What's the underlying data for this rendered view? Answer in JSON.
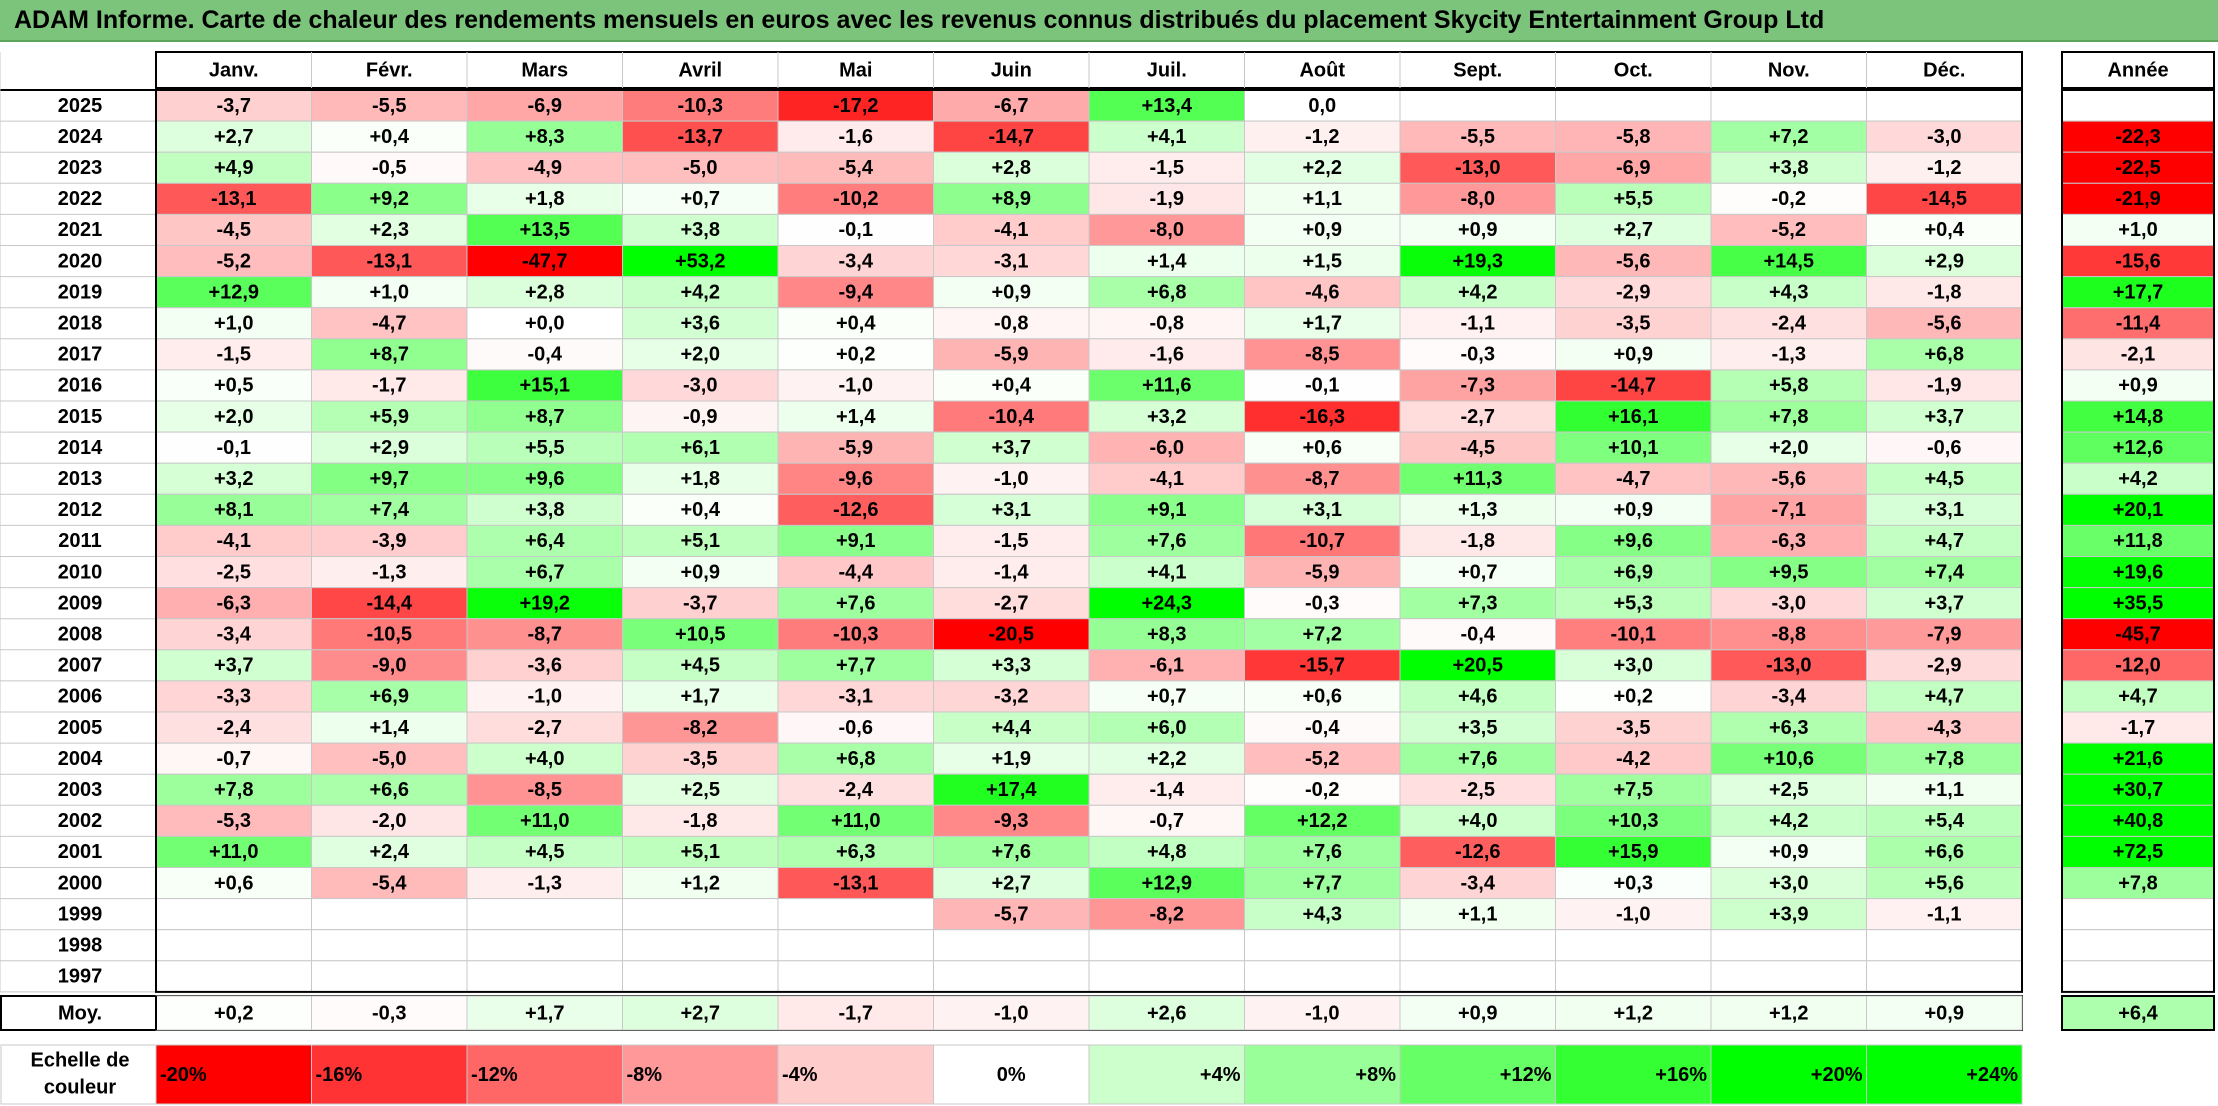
{
  "title": "ADAM Informe. Carte de chaleur des rendements mensuels en euros avec les revenus connus distribués du placement Skycity Entertainment Group Ltd",
  "chart_data": {
    "type": "heatmap",
    "months": [
      "Janv.",
      "Févr.",
      "Mars",
      "Avril",
      "Mai",
      "Juin",
      "Juil.",
      "Août",
      "Sept.",
      "Oct.",
      "Nov.",
      "Déc."
    ],
    "annual_header": "Année",
    "rows": [
      {
        "year": "2025",
        "values": [
          "-3,7",
          "-5,5",
          "-6,9",
          "-10,3",
          "-17,2",
          "-6,7",
          "+13,4",
          "0,0",
          "",
          "",
          "",
          ""
        ],
        "annual": ""
      },
      {
        "year": "2024",
        "values": [
          "+2,7",
          "+0,4",
          "+8,3",
          "-13,7",
          "-1,6",
          "-14,7",
          "+4,1",
          "-1,2",
          "-5,5",
          "-5,8",
          "+7,2",
          "-3,0"
        ],
        "annual": "-22,3"
      },
      {
        "year": "2023",
        "values": [
          "+4,9",
          "-0,5",
          "-4,9",
          "-5,0",
          "-5,4",
          "+2,8",
          "-1,5",
          "+2,2",
          "-13,0",
          "-6,9",
          "+3,8",
          "-1,2"
        ],
        "annual": "-22,5"
      },
      {
        "year": "2022",
        "values": [
          "-13,1",
          "+9,2",
          "+1,8",
          "+0,7",
          "-10,2",
          "+8,9",
          "-1,9",
          "+1,1",
          "-8,0",
          "+5,5",
          "-0,2",
          "-14,5"
        ],
        "annual": "-21,9"
      },
      {
        "year": "2021",
        "values": [
          "-4,5",
          "+2,3",
          "+13,5",
          "+3,8",
          "-0,1",
          "-4,1",
          "-8,0",
          "+0,9",
          "+0,9",
          "+2,7",
          "-5,2",
          "+0,4"
        ],
        "annual": "+1,0"
      },
      {
        "year": "2020",
        "values": [
          "-5,2",
          "-13,1",
          "-47,7",
          "+53,2",
          "-3,4",
          "-3,1",
          "+1,4",
          "+1,5",
          "+19,3",
          "-5,6",
          "+14,5",
          "+2,9"
        ],
        "annual": "-15,6"
      },
      {
        "year": "2019",
        "values": [
          "+12,9",
          "+1,0",
          "+2,8",
          "+4,2",
          "-9,4",
          "+0,9",
          "+6,8",
          "-4,6",
          "+4,2",
          "-2,9",
          "+4,3",
          "-1,8"
        ],
        "annual": "+17,7"
      },
      {
        "year": "2018",
        "values": [
          "+1,0",
          "-4,7",
          "+0,0",
          "+3,6",
          "+0,4",
          "-0,8",
          "-0,8",
          "+1,7",
          "-1,1",
          "-3,5",
          "-2,4",
          "-5,6"
        ],
        "annual": "-11,4"
      },
      {
        "year": "2017",
        "values": [
          "-1,5",
          "+8,7",
          "-0,4",
          "+2,0",
          "+0,2",
          "-5,9",
          "-1,6",
          "-8,5",
          "-0,3",
          "+0,9",
          "-1,3",
          "+6,8"
        ],
        "annual": "-2,1"
      },
      {
        "year": "2016",
        "values": [
          "+0,5",
          "-1,7",
          "+15,1",
          "-3,0",
          "-1,0",
          "+0,4",
          "+11,6",
          "-0,1",
          "-7,3",
          "-14,7",
          "+5,8",
          "-1,9"
        ],
        "annual": "+0,9"
      },
      {
        "year": "2015",
        "values": [
          "+2,0",
          "+5,9",
          "+8,7",
          "-0,9",
          "+1,4",
          "-10,4",
          "+3,2",
          "-16,3",
          "-2,7",
          "+16,1",
          "+7,8",
          "+3,7"
        ],
        "annual": "+14,8"
      },
      {
        "year": "2014",
        "values": [
          "-0,1",
          "+2,9",
          "+5,5",
          "+6,1",
          "-5,9",
          "+3,7",
          "-6,0",
          "+0,6",
          "-4,5",
          "+10,1",
          "+2,0",
          "-0,6"
        ],
        "annual": "+12,6"
      },
      {
        "year": "2013",
        "values": [
          "+3,2",
          "+9,7",
          "+9,6",
          "+1,8",
          "-9,6",
          "-1,0",
          "-4,1",
          "-8,7",
          "+11,3",
          "-4,7",
          "-5,6",
          "+4,5"
        ],
        "annual": "+4,2"
      },
      {
        "year": "2012",
        "values": [
          "+8,1",
          "+7,4",
          "+3,8",
          "+0,4",
          "-12,6",
          "+3,1",
          "+9,1",
          "+3,1",
          "+1,3",
          "+0,9",
          "-7,1",
          "+3,1"
        ],
        "annual": "+20,1"
      },
      {
        "year": "2011",
        "values": [
          "-4,1",
          "-3,9",
          "+6,4",
          "+5,1",
          "+9,1",
          "-1,5",
          "+7,6",
          "-10,7",
          "-1,8",
          "+9,6",
          "-6,3",
          "+4,7"
        ],
        "annual": "+11,8"
      },
      {
        "year": "2010",
        "values": [
          "-2,5",
          "-1,3",
          "+6,7",
          "+0,9",
          "-4,4",
          "-1,4",
          "+4,1",
          "-5,9",
          "+0,7",
          "+6,9",
          "+9,5",
          "+7,4"
        ],
        "annual": "+19,6"
      },
      {
        "year": "2009",
        "values": [
          "-6,3",
          "-14,4",
          "+19,2",
          "-3,7",
          "+7,6",
          "-2,7",
          "+24,3",
          "-0,3",
          "+7,3",
          "+5,3",
          "-3,0",
          "+3,7"
        ],
        "annual": "+35,5"
      },
      {
        "year": "2008",
        "values": [
          "-3,4",
          "-10,5",
          "-8,7",
          "+10,5",
          "-10,3",
          "-20,5",
          "+8,3",
          "+7,2",
          "-0,4",
          "-10,1",
          "-8,8",
          "-7,9"
        ],
        "annual": "-45,7"
      },
      {
        "year": "2007",
        "values": [
          "+3,7",
          "-9,0",
          "-3,6",
          "+4,5",
          "+7,7",
          "+3,3",
          "-6,1",
          "-15,7",
          "+20,5",
          "+3,0",
          "-13,0",
          "-2,9"
        ],
        "annual": "-12,0"
      },
      {
        "year": "2006",
        "values": [
          "-3,3",
          "+6,9",
          "-1,0",
          "+1,7",
          "-3,1",
          "-3,2",
          "+0,7",
          "+0,6",
          "+4,6",
          "+0,2",
          "-3,4",
          "+4,7"
        ],
        "annual": "+4,7"
      },
      {
        "year": "2005",
        "values": [
          "-2,4",
          "+1,4",
          "-2,7",
          "-8,2",
          "-0,6",
          "+4,4",
          "+6,0",
          "-0,4",
          "+3,5",
          "-3,5",
          "+6,3",
          "-4,3"
        ],
        "annual": "-1,7"
      },
      {
        "year": "2004",
        "values": [
          "-0,7",
          "-5,0",
          "+4,0",
          "-3,5",
          "+6,8",
          "+1,9",
          "+2,2",
          "-5,2",
          "+7,6",
          "-4,2",
          "+10,6",
          "+7,8"
        ],
        "annual": "+21,6"
      },
      {
        "year": "2003",
        "values": [
          "+7,8",
          "+6,6",
          "-8,5",
          "+2,5",
          "-2,4",
          "+17,4",
          "-1,4",
          "-0,2",
          "-2,5",
          "+7,5",
          "+2,5",
          "+1,1"
        ],
        "annual": "+30,7"
      },
      {
        "year": "2002",
        "values": [
          "-5,3",
          "-2,0",
          "+11,0",
          "-1,8",
          "+11,0",
          "-9,3",
          "-0,7",
          "+12,2",
          "+4,0",
          "+10,3",
          "+4,2",
          "+5,4"
        ],
        "annual": "+40,8"
      },
      {
        "year": "2001",
        "values": [
          "+11,0",
          "+2,4",
          "+4,5",
          "+5,1",
          "+6,3",
          "+7,6",
          "+4,8",
          "+7,6",
          "-12,6",
          "+15,9",
          "+0,9",
          "+6,6"
        ],
        "annual": "+72,5"
      },
      {
        "year": "2000",
        "values": [
          "+0,6",
          "-5,4",
          "-1,3",
          "+1,2",
          "-13,1",
          "+2,7",
          "+12,9",
          "+7,7",
          "-3,4",
          "+0,3",
          "+3,0",
          "+5,6"
        ],
        "annual": "+7,8"
      },
      {
        "year": "1999",
        "values": [
          "",
          "",
          "",
          "",
          "",
          "-5,7",
          "-8,2",
          "+4,3",
          "+1,1",
          "-1,0",
          "+3,9",
          "-1,1"
        ],
        "annual": ""
      },
      {
        "year": "1998",
        "values": [
          "",
          "",
          "",
          "",
          "",
          "",
          "",
          "",
          "",
          "",
          "",
          ""
        ],
        "annual": ""
      },
      {
        "year": "1997",
        "values": [
          "",
          "",
          "",
          "",
          "",
          "",
          "",
          "",
          "",
          "",
          "",
          ""
        ],
        "annual": ""
      }
    ],
    "average": {
      "label": "Moy.",
      "values": [
        "+0,2",
        "-0,3",
        "+1,7",
        "+2,7",
        "-1,7",
        "-1,0",
        "+2,6",
        "-1,0",
        "+0,9",
        "+1,2",
        "+1,2",
        "+0,9"
      ],
      "annual": "+6,4"
    },
    "scale": {
      "label_line1": "Echelle de",
      "label_line2": "couleur",
      "stops": [
        {
          "label": "-20%",
          "value": -20,
          "color": "#ff0000"
        },
        {
          "label": "-16%",
          "value": -16,
          "color": "#ff3333"
        },
        {
          "label": "-12%",
          "value": -12,
          "color": "#ff6666"
        },
        {
          "label": "-8%",
          "value": -8,
          "color": "#ff9999"
        },
        {
          "label": "-4%",
          "value": -4,
          "color": "#ffcccc"
        },
        {
          "label": "0%",
          "value": 0,
          "color": "#ffffff"
        },
        {
          "label": "+4%",
          "value": 4,
          "color": "#ccffcc"
        },
        {
          "label": "+8%",
          "value": 8,
          "color": "#99ff99"
        },
        {
          "label": "+12%",
          "value": 12,
          "color": "#66ff66"
        },
        {
          "label": "+16%",
          "value": 16,
          "color": "#33ff33"
        },
        {
          "label": "+20%",
          "value": 20,
          "color": "#00ff00"
        },
        {
          "label": "+24%",
          "value": 24,
          "color": "#00ff00"
        }
      ]
    },
    "colors": {
      "title_bg": "#7cc47c",
      "negative_max": "#ff0000",
      "positive_max": "#00ff00",
      "grid": "#c8c8c8",
      "border": "#000000"
    }
  }
}
